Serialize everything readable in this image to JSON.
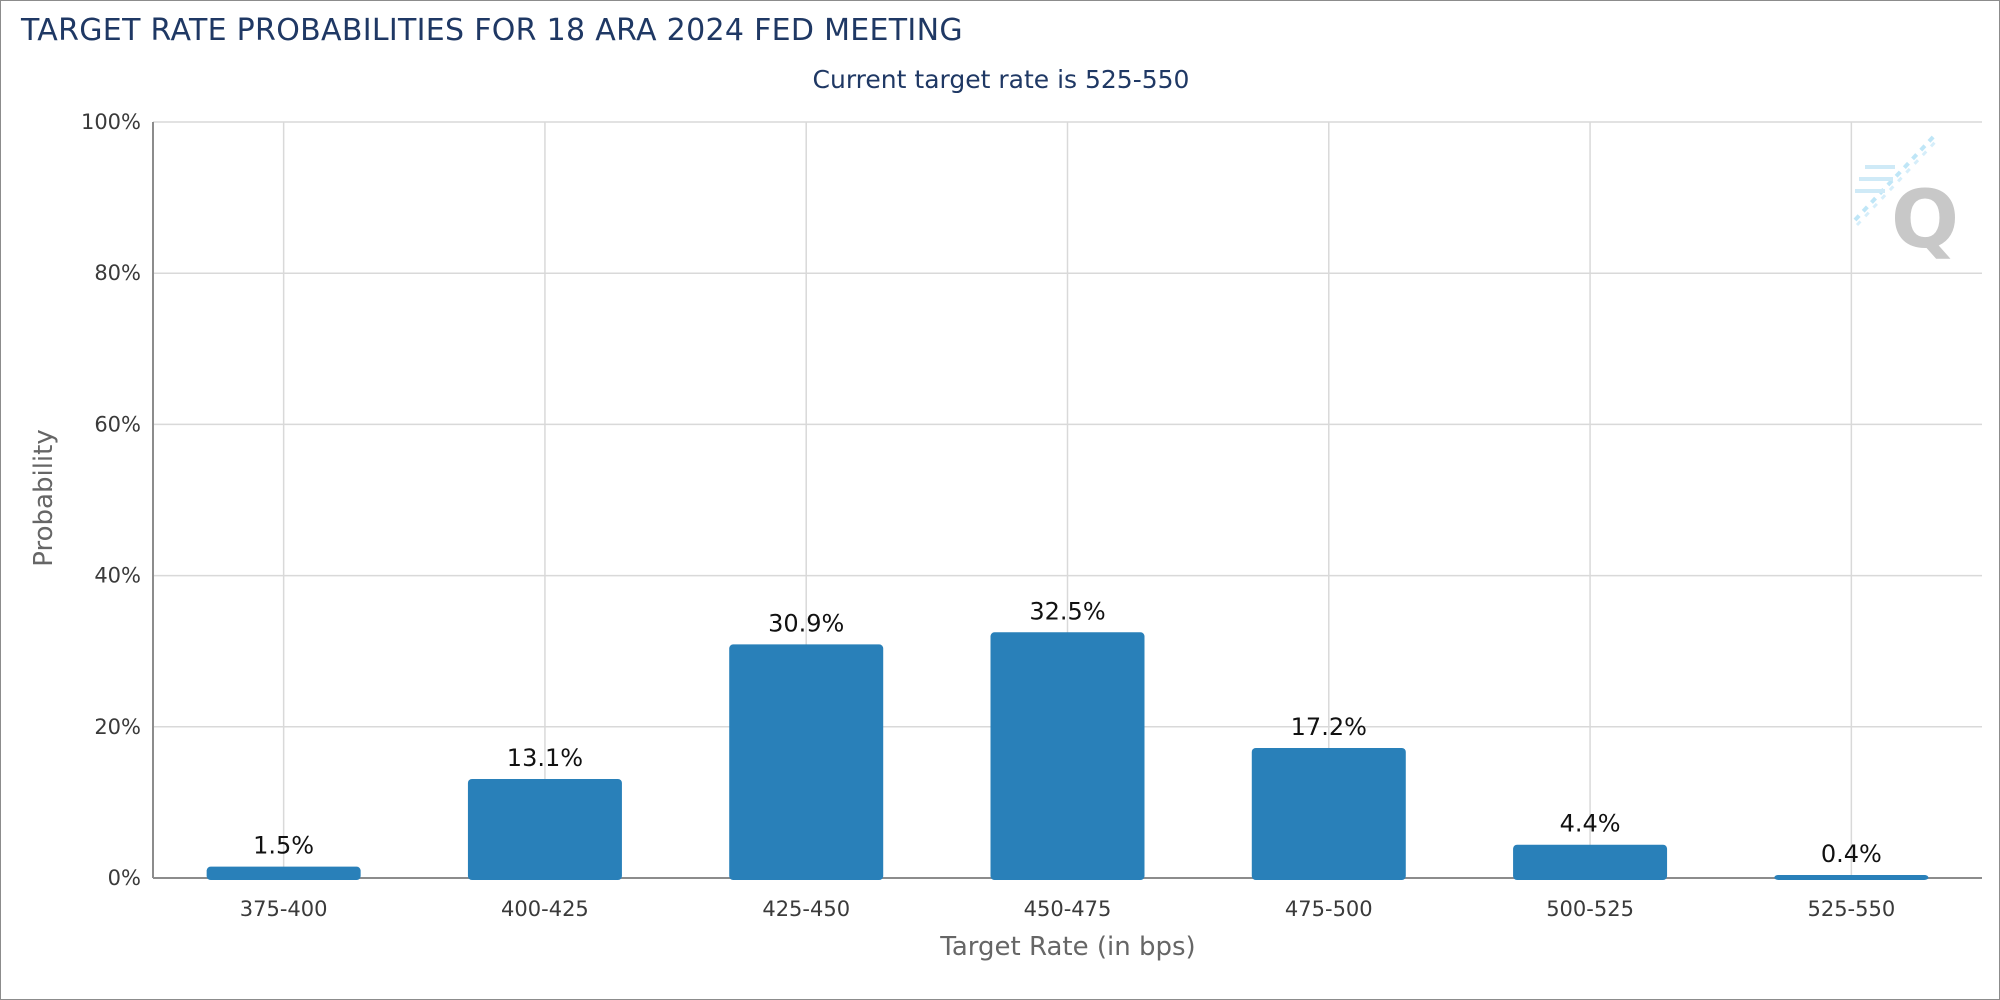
{
  "chart_data": {
    "type": "bar",
    "title": "TARGET RATE PROBABILITIES FOR 18 ARA 2024 FED MEETING",
    "subtitle": "Current target rate is 525-550",
    "xlabel": "Target Rate (in bps)",
    "ylabel": "Probability",
    "categories": [
      "375-400",
      "400-425",
      "425-450",
      "450-475",
      "475-500",
      "500-525",
      "525-550"
    ],
    "values": [
      1.5,
      13.1,
      30.9,
      32.5,
      17.2,
      4.4,
      0.4
    ],
    "data_labels": [
      "1.5%",
      "13.1%",
      "30.9%",
      "32.5%",
      "17.2%",
      "4.4%",
      "0.4%"
    ],
    "ylim": [
      0,
      100
    ],
    "yticks": [
      0,
      20,
      40,
      60,
      80,
      100
    ],
    "ytick_labels": [
      "0%",
      "20%",
      "40%",
      "60%",
      "80%",
      "100%"
    ],
    "grid": true,
    "legend": "none",
    "bar_color": "#2980b9",
    "title_color": "#1f3864"
  },
  "watermark": {
    "logo_text": "Q",
    "icon": "quikstrike-logo-icon"
  }
}
